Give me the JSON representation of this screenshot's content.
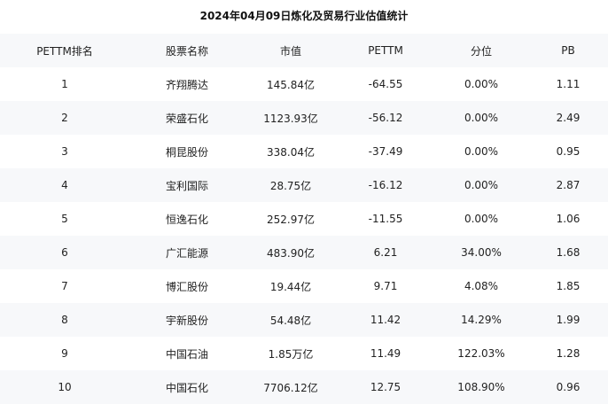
{
  "title": "2024年04月09日炼化及贸易行业估值统计",
  "columns": [
    "PETTM排名",
    "股票名称",
    "市值",
    "PETTM",
    "分位",
    "PB"
  ],
  "rows": [
    [
      "1",
      "齐翔腾达",
      "145.84亿",
      "-64.55",
      "0.00%",
      "1.11"
    ],
    [
      "2",
      "荣盛石化",
      "1123.93亿",
      "-56.12",
      "0.00%",
      "2.49"
    ],
    [
      "3",
      "桐昆股份",
      "338.04亿",
      "-37.49",
      "0.00%",
      "0.95"
    ],
    [
      "4",
      "宝利国际",
      "28.75亿",
      "-16.12",
      "0.00%",
      "2.87"
    ],
    [
      "5",
      "恒逸石化",
      "252.97亿",
      "-11.55",
      "0.00%",
      "1.06"
    ],
    [
      "6",
      "广汇能源",
      "483.90亿",
      "6.21",
      "34.00%",
      "1.68"
    ],
    [
      "7",
      "博汇股份",
      "19.44亿",
      "9.71",
      "4.08%",
      "1.85"
    ],
    [
      "8",
      "宇新股份",
      "54.48亿",
      "11.42",
      "14.29%",
      "1.99"
    ],
    [
      "9",
      "中国石油",
      "1.85万亿",
      "11.49",
      "122.03%",
      "1.28"
    ],
    [
      "10",
      "中国石化",
      "7706.12亿",
      "12.75",
      "108.90%",
      "0.96"
    ]
  ],
  "colors": {
    "stripe": "#f7f8fa"
  }
}
